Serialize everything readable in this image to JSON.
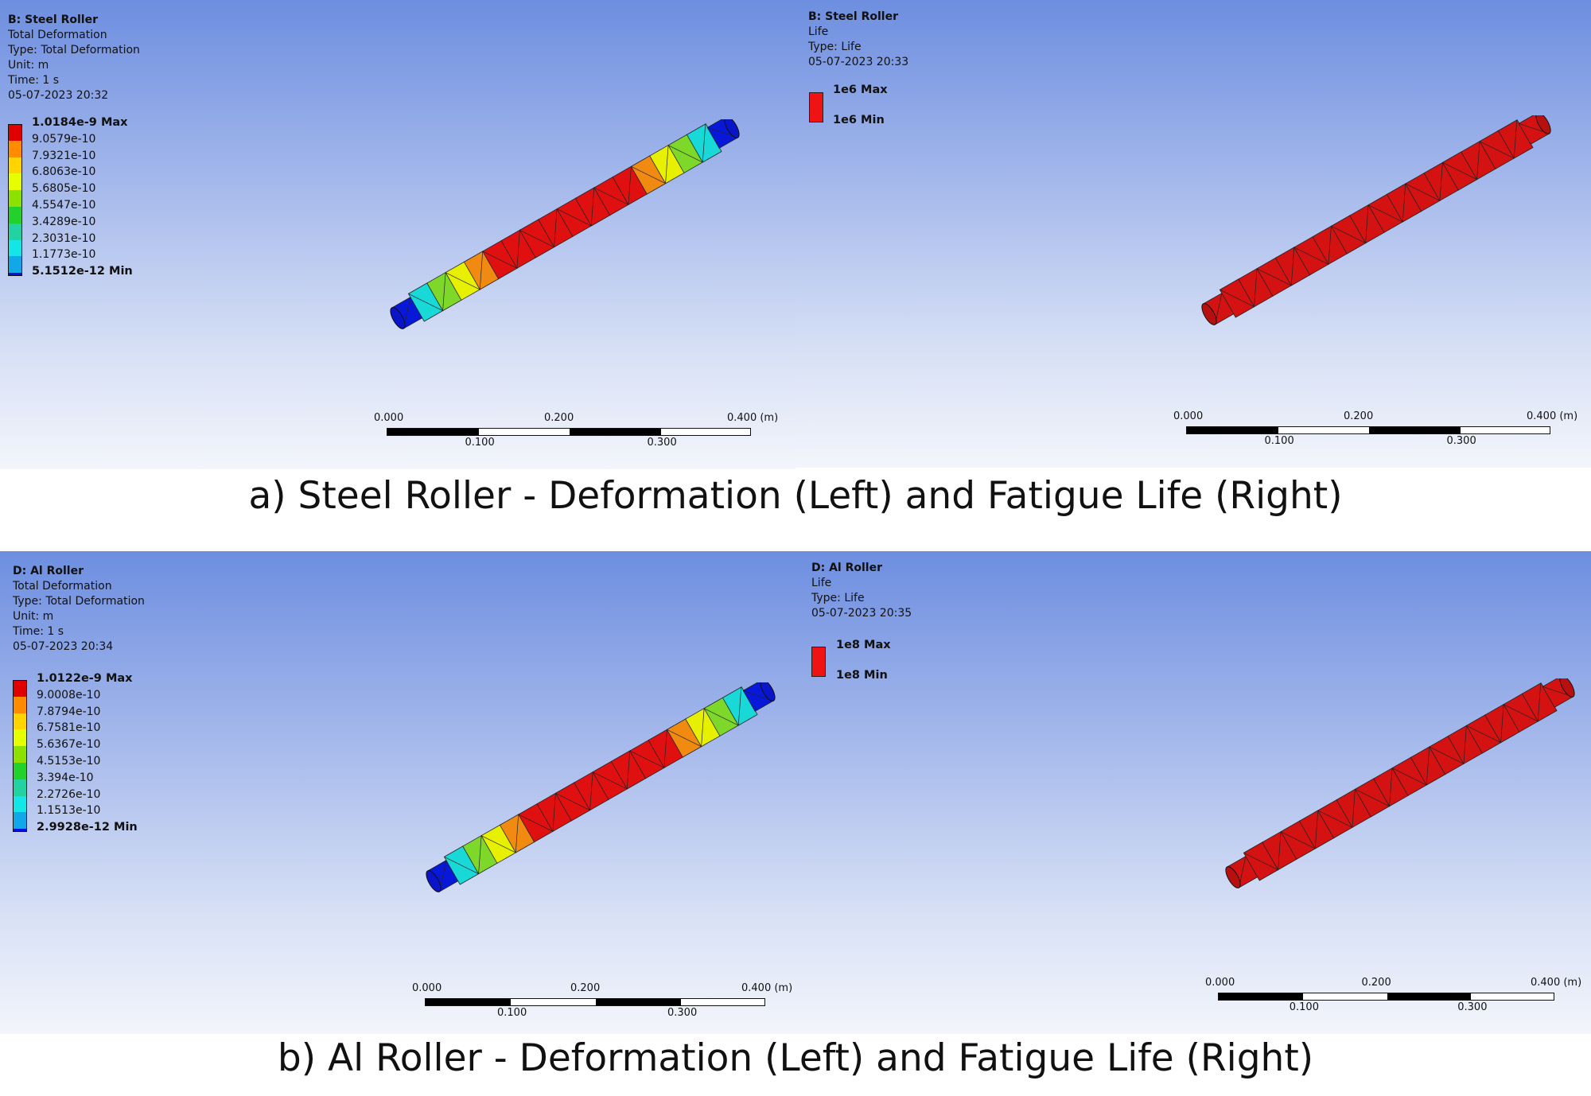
{
  "panels": {
    "steel_deformation": {
      "title": "B: Steel Roller",
      "lines": [
        "Total Deformation",
        "Type: Total Deformation",
        "Unit: m",
        "Time: 1 s",
        "05-07-2023 20:32"
      ],
      "legend": [
        {
          "label": "1.0184e-9 Max",
          "color": "#e00000"
        },
        {
          "label": "9.0579e-10",
          "color": "#ff8c00"
        },
        {
          "label": "7.9321e-10",
          "color": "#ffd400"
        },
        {
          "label": "6.8063e-10",
          "color": "#e6ff00"
        },
        {
          "label": "5.6805e-10",
          "color": "#8ee000"
        },
        {
          "label": "4.5547e-10",
          "color": "#22d22a"
        },
        {
          "label": "3.4289e-10",
          "color": "#22d2a0"
        },
        {
          "label": "2.3031e-10",
          "color": "#12e6e6"
        },
        {
          "label": "1.1773e-10",
          "color": "#10a8e8"
        },
        {
          "label": "5.1512e-12 Min",
          "color": "#0010e0"
        }
      ],
      "scale": {
        "ticks_top": [
          "0.000",
          "0.200",
          "0.400"
        ],
        "unit": "(m)",
        "ticks_bottom": [
          "0.100",
          "0.300"
        ]
      }
    },
    "steel_life": {
      "title": "B: Steel Roller",
      "lines": [
        "Life",
        "Type: Life",
        "05-07-2023 20:33"
      ],
      "max_label": "1e6 Max",
      "min_label": "1e6 Min",
      "scale": {
        "ticks_top": [
          "0.000",
          "0.200",
          "0.400"
        ],
        "unit": "(m)",
        "ticks_bottom": [
          "0.100",
          "0.300"
        ]
      }
    },
    "al_deformation": {
      "title": "D: Al Roller",
      "lines": [
        "Total Deformation",
        "Type: Total Deformation",
        "Unit: m",
        "Time: 1 s",
        "05-07-2023 20:34"
      ],
      "legend": [
        {
          "label": "1.0122e-9 Max",
          "color": "#e00000"
        },
        {
          "label": "9.0008e-10",
          "color": "#ff8c00"
        },
        {
          "label": "7.8794e-10",
          "color": "#ffd400"
        },
        {
          "label": "6.7581e-10",
          "color": "#e6ff00"
        },
        {
          "label": "5.6367e-10",
          "color": "#8ee000"
        },
        {
          "label": "4.5153e-10",
          "color": "#22d22a"
        },
        {
          "label": "3.394e-10",
          "color": "#22d2a0"
        },
        {
          "label": "2.2726e-10",
          "color": "#12e6e6"
        },
        {
          "label": "1.1513e-10",
          "color": "#10a8e8"
        },
        {
          "label": "2.9928e-12 Min",
          "color": "#0010e0"
        }
      ],
      "scale": {
        "ticks_top": [
          "0.000",
          "0.200",
          "0.400"
        ],
        "unit": "(m)",
        "ticks_bottom": [
          "0.100",
          "0.300"
        ]
      }
    },
    "al_life": {
      "title": "D: Al Roller",
      "lines": [
        "Life",
        "Type: Life",
        "05-07-2023 20:35"
      ],
      "max_label": "1e8 Max",
      "min_label": "1e8 Min",
      "scale": {
        "ticks_top": [
          "0.000",
          "0.200",
          "0.400"
        ],
        "unit": "(m)",
        "ticks_bottom": [
          "0.100",
          "0.300"
        ]
      }
    }
  },
  "captions": {
    "steel": "a) Steel Roller - Deformation (Left) and Fatigue Life (Right)",
    "al": "b) Al Roller - Deformation (Left) and Fatigue Life (Right)"
  }
}
